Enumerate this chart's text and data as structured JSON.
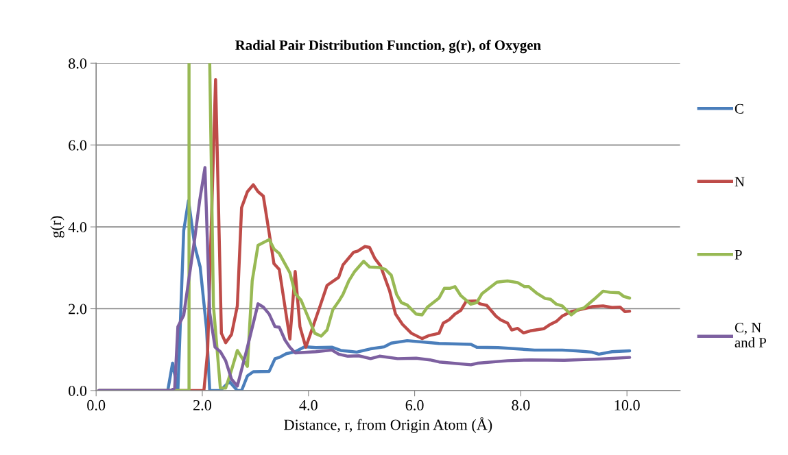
{
  "chart_data": {
    "type": "line",
    "title": "Radial Pair Distribution Function, g(r), of Oxygen",
    "xlabel": "Distance, r, from Origin Atom (Å)",
    "ylabel": "g(r)",
    "xlim": [
      0,
      11
    ],
    "xticks": [
      {
        "value": 0,
        "label": "0.0"
      },
      {
        "value": 2,
        "label": "2.0"
      },
      {
        "value": 4,
        "label": "4.0"
      },
      {
        "value": 6,
        "label": "6.0"
      },
      {
        "value": 8,
        "label": "8.0"
      },
      {
        "value": 10,
        "label": "10.0"
      }
    ],
    "ylim": [
      0,
      8
    ],
    "yticks": [
      {
        "value": 0,
        "label": "0.0"
      },
      {
        "value": 2,
        "label": "2.0"
      },
      {
        "value": 4,
        "label": "4.0"
      },
      {
        "value": 6,
        "label": "6.0"
      },
      {
        "value": 8,
        "label": "8.0"
      }
    ],
    "grid": "y",
    "legend": "right",
    "marker": "none",
    "line_style": "solid",
    "series": [
      {
        "name": "C",
        "color": "#4a7ebb",
        "x": [
          0.05,
          1.35,
          1.44,
          1.54,
          1.65,
          1.74,
          1.86,
          1.96,
          2.08,
          2.14,
          2.34,
          2.51,
          2.66,
          2.74,
          2.85,
          2.96,
          3.26,
          3.37,
          3.45,
          3.58,
          3.75,
          3.93,
          4.14,
          4.44,
          4.61,
          4.91,
          5.17,
          5.43,
          5.56,
          5.86,
          6.46,
          7.06,
          7.17,
          7.57,
          8.26,
          8.78,
          9.04,
          9.34,
          9.47,
          9.72,
          10.05
        ],
        "values": [
          0,
          0,
          0.67,
          0,
          3.91,
          4.64,
          3.52,
          3.02,
          1.51,
          0,
          0,
          0.22,
          0,
          0,
          0.36,
          0.46,
          0.47,
          0.78,
          0.81,
          0.9,
          0.95,
          1.07,
          1.05,
          1.06,
          0.98,
          0.94,
          1.02,
          1.07,
          1.16,
          1.22,
          1.15,
          1.13,
          1.06,
          1.05,
          0.99,
          0.99,
          0.97,
          0.94,
          0.89,
          0.95,
          0.97
        ]
      },
      {
        "name": "N",
        "color": "#be4b48",
        "x": [
          0.05,
          2.03,
          2.1,
          2.25,
          2.36,
          2.44,
          2.55,
          2.66,
          2.74,
          2.85,
          2.96,
          3.05,
          3.15,
          3.26,
          3.35,
          3.45,
          3.65,
          3.75,
          3.84,
          3.95,
          4.22,
          4.35,
          4.57,
          4.65,
          4.85,
          4.93,
          5.06,
          5.15,
          5.25,
          5.36,
          5.53,
          5.64,
          5.77,
          5.94,
          6.14,
          6.26,
          6.46,
          6.54,
          6.65,
          6.76,
          6.87,
          6.97,
          7.15,
          7.23,
          7.36,
          7.53,
          7.62,
          7.75,
          7.83,
          7.94,
          8.05,
          8.18,
          8.43,
          8.56,
          8.67,
          8.78,
          8.95,
          9.16,
          9.34,
          9.55,
          9.72,
          9.87,
          9.96,
          10.05
        ],
        "values": [
          0,
          0,
          0.95,
          7.6,
          1.4,
          1.17,
          1.37,
          2.07,
          4.47,
          4.86,
          5.03,
          4.86,
          4.75,
          3.85,
          3.1,
          2.96,
          1.26,
          2.91,
          1.56,
          1.06,
          2.07,
          2.57,
          2.77,
          3.07,
          3.38,
          3.41,
          3.52,
          3.5,
          3.23,
          3.04,
          2.43,
          1.87,
          1.62,
          1.4,
          1.27,
          1.34,
          1.4,
          1.65,
          1.73,
          1.87,
          1.96,
          2.18,
          2.19,
          2.12,
          2.08,
          1.82,
          1.73,
          1.65,
          1.48,
          1.52,
          1.41,
          1.46,
          1.51,
          1.62,
          1.69,
          1.82,
          1.93,
          1.99,
          2.05,
          2.07,
          2.03,
          2.04,
          1.93,
          1.94
        ]
      },
      {
        "name": "P",
        "color": "#98b954",
        "x": [
          0.05,
          1.7,
          1.75,
          1.75,
          1.8,
          2.1,
          2.14,
          2.14,
          2.21,
          2.34,
          2.44,
          2.55,
          2.66,
          2.85,
          2.94,
          3.05,
          3.26,
          3.35,
          3.45,
          3.65,
          3.75,
          3.86,
          4.12,
          4.24,
          4.35,
          4.46,
          4.57,
          4.65,
          4.76,
          4.87,
          5.04,
          5.15,
          5.32,
          5.45,
          5.56,
          5.66,
          5.75,
          5.86,
          6.03,
          6.14,
          6.24,
          6.46,
          6.56,
          6.67,
          6.76,
          6.87,
          7.06,
          7.17,
          7.27,
          7.4,
          7.55,
          7.75,
          7.94,
          8.07,
          8.15,
          8.31,
          8.46,
          8.56,
          8.67,
          8.78,
          8.95,
          9.08,
          9.19,
          9.38,
          9.55,
          9.68,
          9.85,
          9.94,
          10.05
        ],
        "values": [
          0,
          0,
          0,
          8.0,
          null,
          null,
          8.0,
          8.0,
          2.07,
          0.06,
          0.06,
          0.5,
          0.98,
          0.59,
          2.68,
          3.55,
          3.69,
          3.46,
          3.35,
          2.88,
          2.37,
          2.21,
          1.4,
          1.33,
          1.48,
          1.98,
          2.18,
          2.35,
          2.68,
          2.91,
          3.16,
          3.02,
          3.01,
          2.96,
          2.82,
          2.35,
          2.15,
          2.09,
          1.87,
          1.85,
          2.04,
          2.26,
          2.5,
          2.5,
          2.54,
          2.32,
          2.11,
          2.15,
          2.37,
          2.5,
          2.65,
          2.68,
          2.64,
          2.54,
          2.54,
          2.37,
          2.25,
          2.23,
          2.11,
          2.07,
          1.85,
          1.98,
          2.02,
          2.23,
          2.43,
          2.4,
          2.39,
          2.3,
          2.26
        ]
      },
      {
        "name": "C, N\nand P",
        "color": "#7d60a0",
        "x": [
          0.05,
          1.41,
          1.48,
          1.54,
          1.65,
          1.73,
          1.86,
          1.95,
          2.05,
          2.14,
          2.24,
          2.34,
          2.44,
          2.55,
          2.66,
          2.85,
          3.05,
          3.15,
          3.26,
          3.37,
          3.45,
          3.56,
          3.65,
          3.75,
          4.14,
          4.44,
          4.57,
          4.74,
          4.95,
          5.17,
          5.34,
          5.68,
          6.03,
          6.29,
          6.46,
          6.72,
          7.06,
          7.19,
          7.75,
          8.18,
          8.82,
          9.47,
          10.05
        ],
        "values": [
          0,
          0,
          0.06,
          1.56,
          1.84,
          2.57,
          3.74,
          4.64,
          5.45,
          1.9,
          1.06,
          0.95,
          0.73,
          0.28,
          0.11,
          1.06,
          2.12,
          2.04,
          1.87,
          1.56,
          1.55,
          1.23,
          1.06,
          0.92,
          0.95,
          0.99,
          0.89,
          0.84,
          0.85,
          0.78,
          0.84,
          0.78,
          0.79,
          0.75,
          0.7,
          0.67,
          0.63,
          0.67,
          0.73,
          0.75,
          0.74,
          0.77,
          0.81
        ]
      }
    ]
  }
}
